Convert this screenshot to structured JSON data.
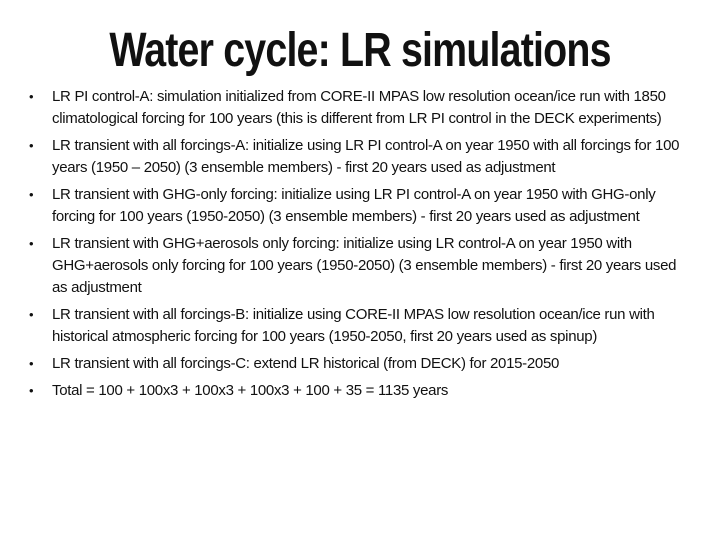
{
  "slide": {
    "title": "Water cycle: LR simulations",
    "bullet_glyph": "•",
    "colors": {
      "text": "#111111",
      "background": "#ffffff"
    },
    "bullets": [
      {
        "text": "LR PI control-A:  simulation initialized from  CORE-II MPAS low resolution ocean/ice run with 1850 climatological forcing for 100 years (this is different from LR PI control in the DECK experiments)"
      },
      {
        "text": "LR transient with all forcings-A: initialize using LR PI control-A on year 1950 with all forcings for 100 years (1950 – 2050) (3 ensemble members) - first 20 years used as adjustment"
      },
      {
        "text": "LR transient with GHG-only forcing: initialize using LR PI control-A on year 1950 with GHG-only forcing for 100 years (1950-2050) (3 ensemble members) - first 20 years used as adjustment"
      },
      {
        "text": "LR transient with GHG+aerosols only forcing: initialize using LR control-A on year 1950 with GHG+aerosols only forcing for 100 years (1950-2050) (3 ensemble members) - first 20 years used as adjustment"
      },
      {
        "text": "LR transient with all forcings-B: initialize using CORE-II MPAS low resolution ocean/ice run with historical atmospheric forcing for 100 years (1950-2050, first 20 years used as spinup)"
      },
      {
        "text": "LR transient with all forcings-C: extend LR historical (from DECK) for 2015-2050"
      },
      {
        "text": "Total = 100 + 100x3 + 100x3 + 100x3 + 100 + 35 = 1135 years"
      }
    ]
  }
}
